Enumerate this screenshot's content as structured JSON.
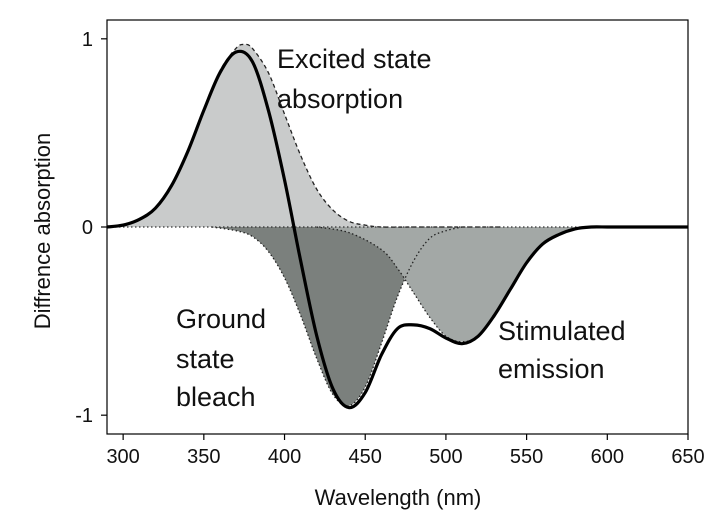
{
  "chart_data": {
    "type": "area",
    "title": "",
    "xlabel": "Wavelength (nm)",
    "ylabel": "Diffrence absorption",
    "xlim": [
      290,
      650
    ],
    "ylim": [
      -1.1,
      1.1
    ],
    "x_ticks": [
      300,
      350,
      400,
      450,
      500,
      550,
      600,
      650
    ],
    "y_ticks": [
      1,
      0,
      -1
    ],
    "y_tick_labels": [
      "1",
      "0",
      "-1"
    ],
    "grid": false,
    "legend": "none",
    "components": [
      {
        "name": "Excited state absorption",
        "style": "dashed-outline-filled",
        "color": "#c9cbcb",
        "x": [
          290,
          300,
          310,
          320,
          330,
          340,
          350,
          360,
          370,
          375,
          380,
          390,
          400,
          410,
          420,
          430,
          440,
          450,
          460,
          480,
          500,
          520,
          535
        ],
        "y": [
          0.0,
          0.01,
          0.04,
          0.1,
          0.22,
          0.4,
          0.62,
          0.83,
          0.95,
          0.97,
          0.95,
          0.82,
          0.6,
          0.38,
          0.2,
          0.09,
          0.03,
          0.01,
          0.0,
          0.0,
          0.0,
          0.0,
          0.0
        ]
      },
      {
        "name": "Ground state bleach",
        "style": "dotted-outline-filled",
        "color": "#7b807d",
        "x": [
          355,
          370,
          380,
          390,
          400,
          410,
          420,
          430,
          440,
          450,
          460,
          470,
          480,
          490,
          500,
          510
        ],
        "y": [
          0.0,
          -0.02,
          -0.05,
          -0.13,
          -0.27,
          -0.47,
          -0.7,
          -0.89,
          -0.95,
          -0.85,
          -0.62,
          -0.37,
          -0.18,
          -0.06,
          -0.02,
          0.0
        ]
      },
      {
        "name": "Stimulated emission",
        "style": "dotted-outline-filled",
        "color": "#a3a8a6",
        "x": [
          420,
          440,
          460,
          470,
          480,
          490,
          500,
          510,
          520,
          530,
          540,
          550,
          560,
          570,
          580,
          590,
          600,
          610
        ],
        "y": [
          0.0,
          -0.03,
          -0.12,
          -0.22,
          -0.35,
          -0.48,
          -0.58,
          -0.61,
          -0.58,
          -0.47,
          -0.33,
          -0.19,
          -0.09,
          -0.04,
          -0.01,
          0.0,
          0.0,
          0.0
        ]
      }
    ],
    "series": [
      {
        "name": "",
        "style": "solid",
        "color": "#000000",
        "x": [
          290,
          300,
          310,
          320,
          330,
          340,
          350,
          360,
          370,
          380,
          390,
          400,
          410,
          420,
          430,
          440,
          450,
          460,
          470,
          480,
          490,
          500,
          510,
          520,
          530,
          540,
          550,
          560,
          570,
          580,
          590,
          600,
          610,
          620,
          650
        ],
        "y": [
          0.0,
          0.01,
          0.04,
          0.1,
          0.22,
          0.4,
          0.62,
          0.82,
          0.93,
          0.88,
          0.62,
          0.25,
          -0.18,
          -0.58,
          -0.86,
          -0.96,
          -0.88,
          -0.68,
          -0.54,
          -0.52,
          -0.54,
          -0.59,
          -0.62,
          -0.58,
          -0.47,
          -0.33,
          -0.19,
          -0.09,
          -0.04,
          -0.01,
          0.0,
          0.0,
          0.0,
          0.0,
          0.0
        ]
      }
    ],
    "annotations": {
      "excited_line1": "Excited state",
      "excited_line2": "absorption",
      "ground_line1": "Ground",
      "ground_line2": "state",
      "ground_line3": "bleach",
      "stimulated_line1": "Stimulated",
      "stimulated_line2": "emission"
    }
  }
}
